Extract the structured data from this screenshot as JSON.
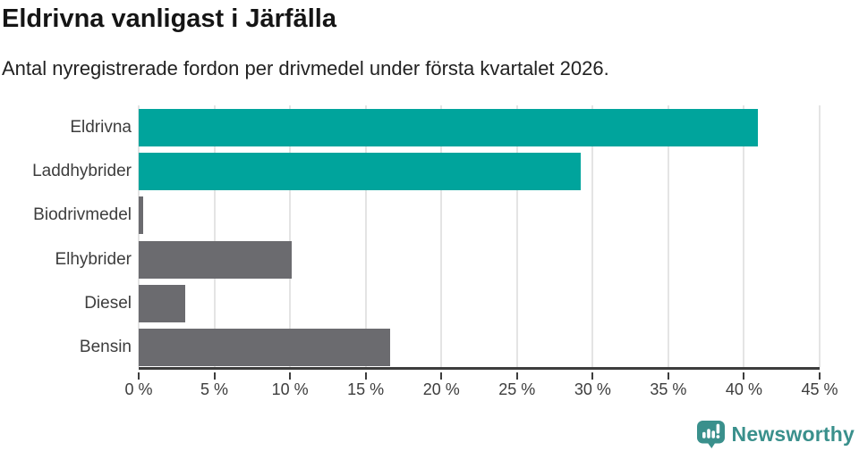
{
  "header": {
    "title": "Eldrivna vanligast i Järfälla",
    "subtitle": "Antal nyregistrerade fordon per drivmedel under första kvartalet 2026."
  },
  "chart_data": {
    "type": "bar",
    "orientation": "horizontal",
    "title": "Eldrivna vanligast i Järfälla",
    "subtitle": "Antal nyregistrerade fordon per drivmedel under första kvartalet 2026.",
    "categories": [
      "Eldrivna",
      "Laddhybrider",
      "Biodrivmedel",
      "Elhybrider",
      "Diesel",
      "Bensin"
    ],
    "values": [
      40.9,
      29.2,
      0.3,
      10.1,
      3.1,
      16.6
    ],
    "unit": "%",
    "bar_colors": [
      "#00a49c",
      "#00a49c",
      "#6b6b6f",
      "#6b6b6f",
      "#6b6b6f",
      "#6b6b6f"
    ],
    "xlim": [
      0,
      45
    ],
    "xticks": [
      {
        "value": 0,
        "label": "0 %"
      },
      {
        "value": 5,
        "label": "5 %"
      },
      {
        "value": 10,
        "label": "10 %"
      },
      {
        "value": 15,
        "label": "15 %"
      },
      {
        "value": 20,
        "label": "20 %"
      },
      {
        "value": 25,
        "label": "25 %"
      },
      {
        "value": 30,
        "label": "30 %"
      },
      {
        "value": 35,
        "label": "35 %"
      },
      {
        "value": 40,
        "label": "40 %"
      },
      {
        "value": 45,
        "label": "45 %"
      }
    ],
    "grid": "vertical",
    "legend": "none"
  },
  "branding": {
    "logo_text": "Newsworthy",
    "logo_icon": "newsworthy-speech-bubble-bar-chart-icon"
  },
  "colors": {
    "accent_teal": "#00a49c",
    "neutral_gray": "#6b6b6f",
    "axis": "#3d3d3d",
    "grid": "#e4e4e4",
    "title_text": "#151515",
    "brand_teal": "#3a908c"
  }
}
